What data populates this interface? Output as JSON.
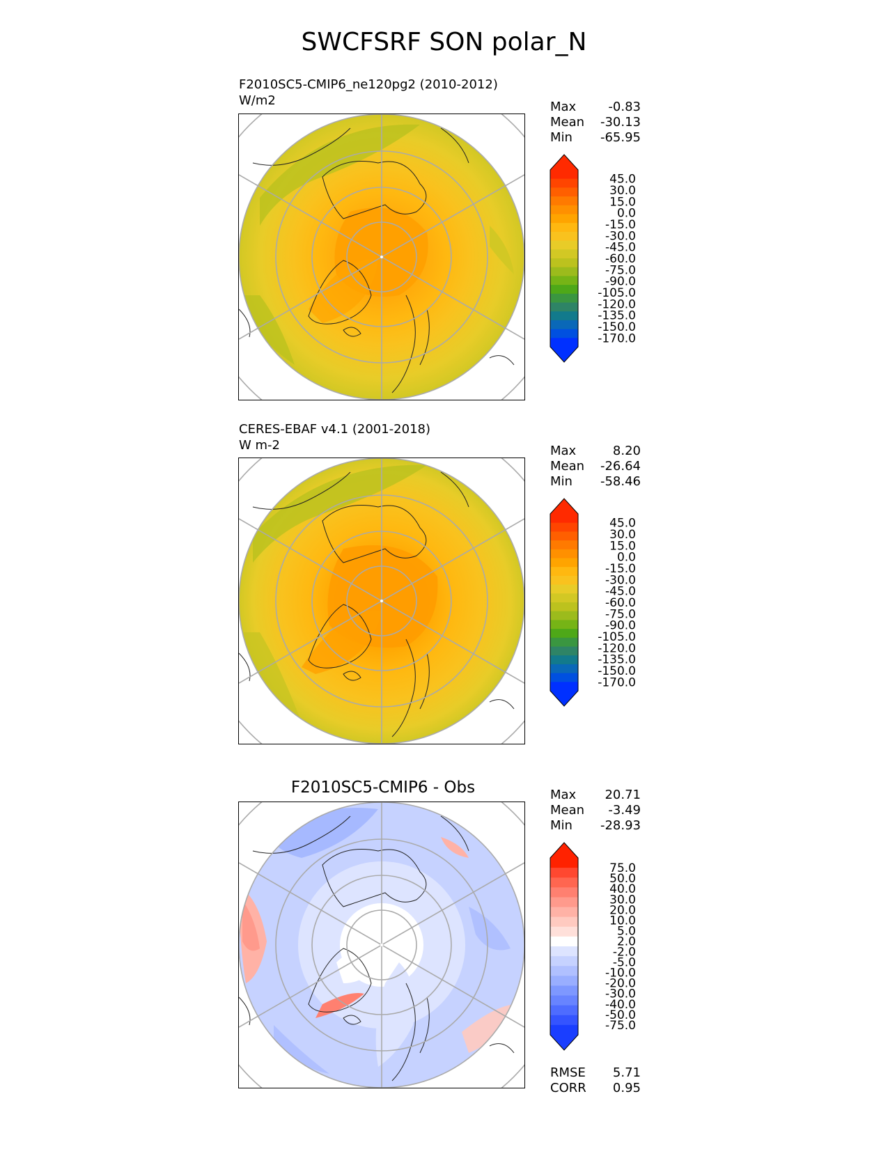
{
  "title": "SWCFSRF SON polar_N",
  "colormaps": {
    "full": [
      "#ff2a00",
      "#ff4500",
      "#ff5f00",
      "#ff7a00",
      "#ff9000",
      "#ffa400",
      "#ffb810",
      "#f9c21e",
      "#e8cc28",
      "#d2c824",
      "#bcc21e",
      "#9cbb1c",
      "#76b416",
      "#4ea818",
      "#3a9640",
      "#2e8466",
      "#127a8c",
      "#0a68b8",
      "#0050e0",
      "#0030ff"
    ],
    "diff": [
      "#ff2200",
      "#ff4830",
      "#ff6650",
      "#ff8070",
      "#ff9a8c",
      "#ffb2a6",
      "#ffcac0",
      "#ffe0da",
      "#ffffff",
      "#dde4ff",
      "#c6d2ff",
      "#b0c0ff",
      "#99aeff",
      "#7e98ff",
      "#6884ff",
      "#4e6cff",
      "#3454ff",
      "#1a3eff"
    ]
  },
  "panels": [
    {
      "title_line1": "F2010SC5-CMIP6_ne120pg2 (2010-2012)",
      "title_line2": "W/m2",
      "stats": {
        "max_label": "Max",
        "max": "-0.83",
        "mean_label": "Mean",
        "mean": "-30.13",
        "min_label": "Min",
        "min": "-65.95"
      },
      "colorbar_ticks": [
        "45.0",
        "30.0",
        "15.0",
        "0.0",
        "-15.0",
        "-30.0",
        "-45.0",
        "-60.0",
        "-75.0",
        "-90.0",
        "-105.0",
        "-120.0",
        "-135.0",
        "-150.0",
        "-170.0"
      ],
      "colormap": "full"
    },
    {
      "title_line1": "CERES-EBAF v4.1 (2001-2018)",
      "title_line2": "W m-2",
      "stats": {
        "max_label": "Max",
        "max": "8.20",
        "mean_label": "Mean",
        "mean": "-26.64",
        "min_label": "Min",
        "min": "-58.46"
      },
      "colorbar_ticks": [
        "45.0",
        "30.0",
        "15.0",
        "0.0",
        "-15.0",
        "-30.0",
        "-45.0",
        "-60.0",
        "-75.0",
        "-90.0",
        "-105.0",
        "-120.0",
        "-135.0",
        "-150.0",
        "-170.0"
      ],
      "colormap": "full"
    },
    {
      "title": "F2010SC5-CMIP6 - Obs",
      "stats": {
        "max_label": "Max",
        "max": "20.71",
        "mean_label": "Mean",
        "mean": "-3.49",
        "min_label": "Min",
        "min": "-28.93"
      },
      "colorbar_ticks": [
        "75.0",
        "50.0",
        "40.0",
        "30.0",
        "20.0",
        "10.0",
        "5.0",
        "2.0",
        "-2.0",
        "-5.0",
        "-10.0",
        "-20.0",
        "-30.0",
        "-40.0",
        "-50.0",
        "-75.0"
      ],
      "colormap": "diff",
      "rmse_label": "RMSE",
      "rmse": "5.71",
      "corr_label": "CORR",
      "corr": "0.95"
    }
  ],
  "chart_data": {
    "type": "heatmap",
    "title": "SWCFSRF SON polar_N",
    "projection": "north polar stereographic",
    "panels": [
      {
        "name": "F2010SC5-CMIP6_ne120pg2 (2010-2012)",
        "units": "W/m2",
        "max": -0.83,
        "mean": -30.13,
        "min": -65.95,
        "levels": [
          -170,
          -150,
          -135,
          -120,
          -105,
          -90,
          -75,
          -60,
          -45,
          -30,
          -15,
          0,
          15,
          30,
          45
        ]
      },
      {
        "name": "CERES-EBAF v4.1 (2001-2018)",
        "units": "W m-2",
        "max": 8.2,
        "mean": -26.64,
        "min": -58.46,
        "levels": [
          -170,
          -150,
          -135,
          -120,
          -105,
          -90,
          -75,
          -60,
          -45,
          -30,
          -15,
          0,
          15,
          30,
          45
        ]
      },
      {
        "name": "F2010SC5-CMIP6 - Obs",
        "max": 20.71,
        "mean": -3.49,
        "min": -28.93,
        "rmse": 5.71,
        "corr": 0.95,
        "levels": [
          -75,
          -50,
          -40,
          -30,
          -20,
          -10,
          -5,
          -2,
          2,
          5,
          10,
          20,
          30,
          40,
          50,
          75
        ]
      }
    ]
  }
}
